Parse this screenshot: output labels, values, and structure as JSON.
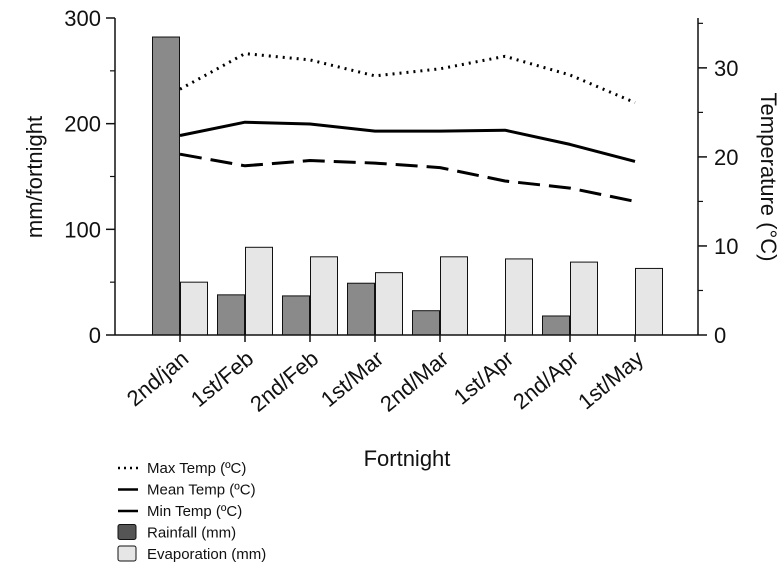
{
  "chart_data": {
    "type": "bar",
    "title": "",
    "xlabel": "Fortnight",
    "ylabel": "mm/fortnight",
    "ylabel_right": "Temperature (°C)",
    "ylim": [
      0,
      300
    ],
    "yticks": [
      0,
      100,
      200,
      300
    ],
    "ylim_right": [
      0,
      35.6
    ],
    "yticks_right": [
      0,
      10,
      20,
      30
    ],
    "grid": false,
    "legend_position": "bottom-left",
    "categories": [
      "2nd/jan",
      "1st/Feb",
      "2nd/Feb",
      "1st/Mar",
      "2nd/Mar",
      "1st/Apr",
      "2nd/Apr",
      "1st/May"
    ],
    "bar_series": [
      {
        "name": "Rainfall (mm)",
        "color": "#8a8a8a",
        "values": [
          282,
          38,
          37,
          49,
          23,
          0,
          18,
          0
        ]
      },
      {
        "name": "Evaporation (mm)",
        "color": "#e6e6e6",
        "values": [
          50,
          83,
          74,
          59,
          74,
          72,
          69,
          63
        ]
      }
    ],
    "line_series": [
      {
        "name": "Max Temp (ºC)",
        "style": "dotted",
        "values": [
          27.6,
          31.6,
          30.9,
          29.1,
          29.9,
          31.3,
          29.2,
          26.1
        ]
      },
      {
        "name": "Mean Temp (ºC)",
        "style": "solid",
        "values": [
          22.4,
          23.9,
          23.7,
          22.9,
          22.9,
          23.0,
          21.4,
          19.5
        ]
      },
      {
        "name": "Min Temp (ºC)",
        "style": "dashed",
        "values": [
          20.3,
          19.0,
          19.6,
          19.3,
          18.8,
          17.3,
          16.5,
          15.0
        ]
      }
    ],
    "legend": [
      {
        "label": "Max Temp (ºC)",
        "symbol": "dotted-line"
      },
      {
        "label": "Mean Temp (ºC)",
        "symbol": "solid-line"
      },
      {
        "label": "Min Temp (ºC)",
        "symbol": "solid-line"
      },
      {
        "label": "Rainfall (mm)",
        "symbol": "box",
        "color": "#555555"
      },
      {
        "label": "Evaporation (mm)",
        "symbol": "box",
        "color": "#e6e6e6"
      }
    ]
  }
}
